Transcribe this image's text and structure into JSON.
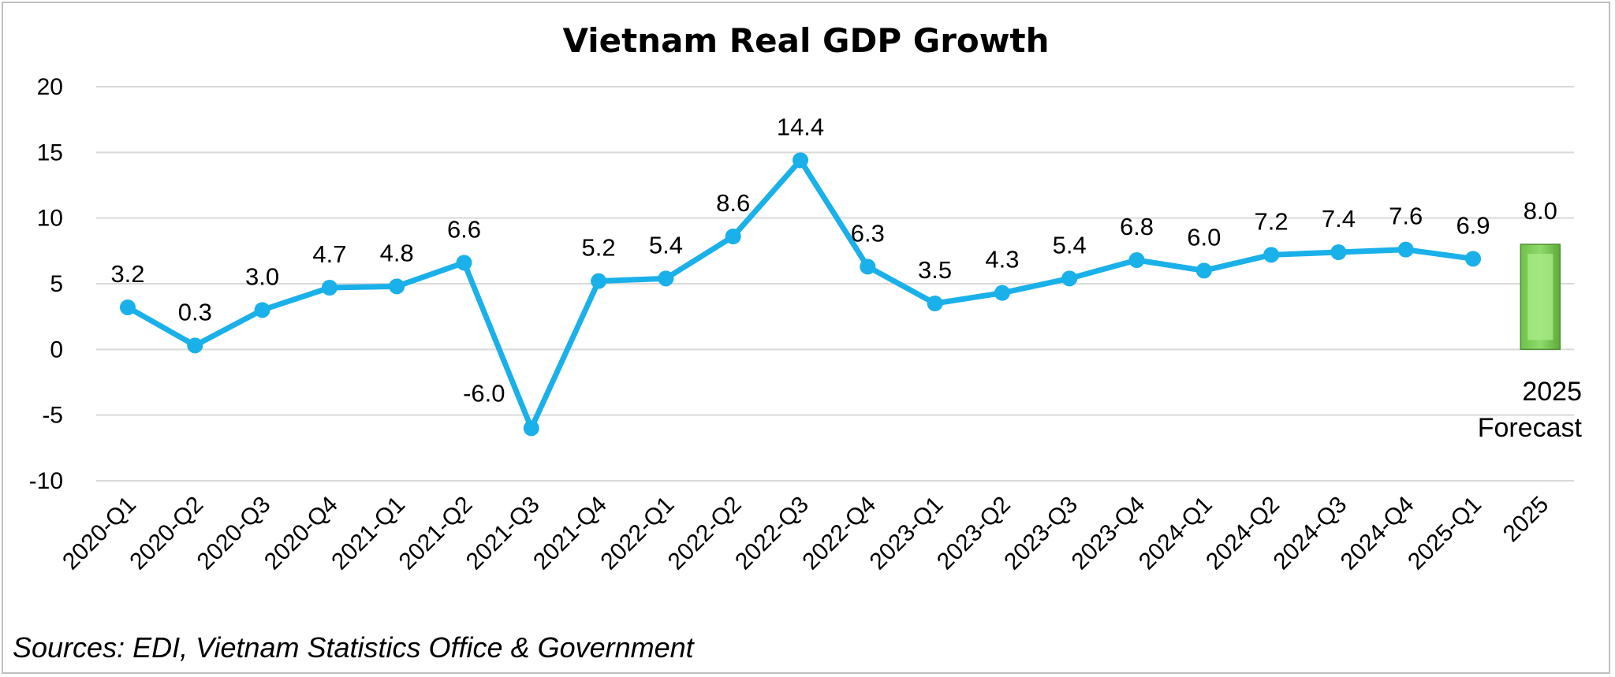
{
  "chart_data": {
    "type": "line",
    "title": "Vietnam Real GDP Growth",
    "categories": [
      "2020-Q1",
      "2020-Q2",
      "2020-Q3",
      "2020-Q4",
      "2021-Q1",
      "2021-Q2",
      "2021-Q3",
      "2021-Q4",
      "2022-Q1",
      "2022-Q2",
      "2022-Q3",
      "2022-Q4",
      "2023-Q1",
      "2023-Q2",
      "2023-Q3",
      "2023-Q4",
      "2024-Q1",
      "2024-Q2",
      "2024-Q3",
      "2024-Q4",
      "2025-Q1",
      "2025"
    ],
    "series": [
      {
        "type": "line",
        "color": "#1ab0ea",
        "values": [
          3.2,
          0.3,
          3.0,
          4.7,
          4.8,
          6.6,
          -6.0,
          5.2,
          5.4,
          8.6,
          14.4,
          6.3,
          3.5,
          4.3,
          5.4,
          6.8,
          6.0,
          7.2,
          7.4,
          7.6,
          6.9,
          null
        ],
        "labels": [
          "3.2",
          "0.3",
          "3.0",
          "4.7",
          "4.8",
          "6.6",
          "-6.0",
          "5.2",
          "5.4",
          "8.6",
          "14.4",
          "6.3",
          "3.5",
          "4.3",
          "5.4",
          "6.8",
          "6.0",
          "7.2",
          "7.4",
          "7.6",
          "6.9",
          ""
        ]
      },
      {
        "type": "bar",
        "color": "#8edb6c",
        "category": "2025",
        "value": 8.0,
        "label": "8.0",
        "annotation": [
          "2025",
          "Forecast"
        ]
      }
    ],
    "yticks": [
      "20",
      "15",
      "10",
      "5",
      "0",
      "-5",
      "-10"
    ],
    "ylim": [
      -10,
      20
    ],
    "grid": true,
    "legend": "none",
    "source": "Sources:  EDI, Vietnam Statistics Office & Government"
  }
}
